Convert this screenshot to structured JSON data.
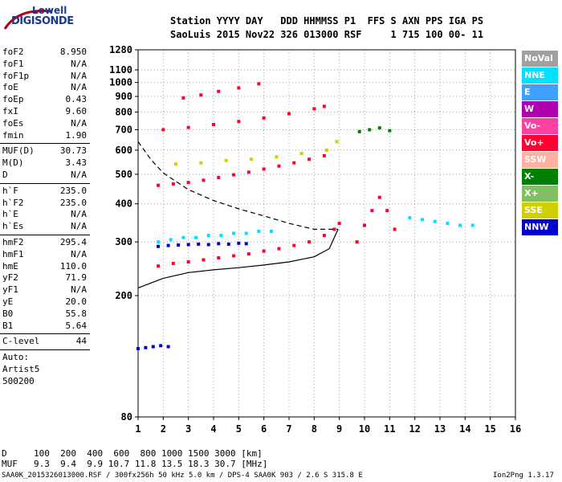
{
  "logo": {
    "line1": "Lowell",
    "line2": "DIGISONDE"
  },
  "header": {
    "line1": "Station YYYY DAY   DDD HHMMSS P1  FFS S AXN PPS IGA PS",
    "line2": "SaoLuis 2015 Nov22 326 013000 RSF     1 715 100 00- 11"
  },
  "params": {
    "group1": [
      {
        "name": "foF2",
        "value": "8.950"
      },
      {
        "name": "foF1",
        "value": "N/A"
      },
      {
        "name": "foF1p",
        "value": "N/A"
      },
      {
        "name": "foE",
        "value": "N/A"
      },
      {
        "name": "foEp",
        "value": "0.43"
      },
      {
        "name": "fxI",
        "value": "9.60"
      },
      {
        "name": "foEs",
        "value": "N/A"
      },
      {
        "name": "fmin",
        "value": "1.90"
      }
    ],
    "group2": [
      {
        "name": "MUF(D)",
        "value": "30.73"
      },
      {
        "name": "M(D)",
        "value": "3.43"
      },
      {
        "name": "D",
        "value": "N/A"
      }
    ],
    "group3": [
      {
        "name": "h`F",
        "value": "235.0"
      },
      {
        "name": "h`F2",
        "value": "235.0"
      },
      {
        "name": "h`E",
        "value": "N/A"
      },
      {
        "name": "h`Es",
        "value": "N/A"
      }
    ],
    "group4": [
      {
        "name": "hmF2",
        "value": "295.4"
      },
      {
        "name": "hmF1",
        "value": "N/A"
      },
      {
        "name": "hmE",
        "value": "110.0"
      },
      {
        "name": "yF2",
        "value": "71.9"
      },
      {
        "name": "yF1",
        "value": "N/A"
      },
      {
        "name": "yE",
        "value": "20.0"
      },
      {
        "name": "B0",
        "value": "55.8"
      },
      {
        "name": "B1",
        "value": "5.64"
      }
    ],
    "clevel": {
      "name": "C-level",
      "value": "44"
    },
    "auto": [
      "Auto:",
      "Artist5",
      "500200"
    ]
  },
  "legend": [
    {
      "label": "NoVal",
      "color": "#a0a0a0"
    },
    {
      "label": "NNE",
      "color": "#00e0ff"
    },
    {
      "label": "E",
      "color": "#3fa0ff"
    },
    {
      "label": "W",
      "color": "#b000b0"
    },
    {
      "label": "Vo-",
      "color": "#ff40a0"
    },
    {
      "label": "Vo+",
      "color": "#ff0030"
    },
    {
      "label": "SSW",
      "color": "#ffb0a0"
    },
    {
      "label": "X-",
      "color": "#008000"
    },
    {
      "label": "X+",
      "color": "#80c060"
    },
    {
      "label": "SSE",
      "color": "#d0d000"
    },
    {
      "label": "NNW",
      "color": "#0000d0"
    }
  ],
  "chart_data": {
    "type": "scatter",
    "xlim": [
      1,
      16
    ],
    "ylim": [
      80,
      1280
    ],
    "y_scale": "log",
    "x_ticks": [
      1,
      2,
      3,
      4,
      5,
      6,
      7,
      8,
      9,
      10,
      11,
      12,
      13,
      14,
      15,
      16
    ],
    "y_ticks": [
      80,
      200,
      300,
      400,
      500,
      600,
      700,
      800,
      900,
      1000,
      1100,
      1280
    ],
    "grid": true,
    "traces": [
      {
        "series": "Vo+",
        "color": "#ff0030",
        "x": [
          1.8,
          2.4,
          3.0,
          3.6,
          4.2,
          4.8,
          5.4,
          6.0,
          6.6,
          7.2,
          7.8,
          8.4,
          8.8,
          9.0
        ],
        "y": [
          250,
          255,
          258,
          262,
          266,
          270,
          274,
          280,
          285,
          292,
          300,
          315,
          330,
          345
        ]
      },
      {
        "series": "Vo+",
        "color": "#ff0030",
        "x": [
          1.8,
          2.4,
          3.0,
          3.6,
          4.2,
          4.8,
          5.4,
          6.0,
          6.6,
          7.2,
          7.8,
          8.4
        ],
        "y": [
          460,
          465,
          470,
          478,
          488,
          498,
          508,
          520,
          532,
          545,
          560,
          575
        ]
      },
      {
        "series": "Vo+",
        "color": "#ff0030",
        "x": [
          2.0,
          3.0,
          4.0,
          5.0,
          6.0,
          7.0,
          8.0,
          8.4
        ],
        "y": [
          700,
          712,
          728,
          745,
          765,
          790,
          820,
          835
        ]
      },
      {
        "series": "Vo+",
        "color": "#ff0030",
        "x": [
          2.8,
          3.5,
          4.2,
          5.0,
          5.8
        ],
        "y": [
          890,
          910,
          935,
          960,
          990
        ]
      },
      {
        "series": "NNE",
        "color": "#00e0ff",
        "x": [
          1.8,
          2.3,
          2.8,
          3.3,
          3.8,
          4.3,
          4.8,
          5.3,
          5.8,
          6.3
        ],
        "y": [
          300,
          305,
          310,
          310,
          315,
          315,
          320,
          320,
          325,
          325
        ]
      },
      {
        "series": "SSE",
        "color": "#d0d000",
        "x": [
          2.5,
          3.5,
          4.5,
          5.5,
          6.5,
          7.5,
          8.5,
          8.9
        ],
        "y": [
          540,
          545,
          555,
          560,
          570,
          585,
          600,
          640
        ]
      },
      {
        "series": "NNW",
        "color": "#0000d0",
        "x": [
          1.8,
          2.2,
          2.6,
          3.0,
          3.4,
          3.8,
          4.2,
          4.6,
          5.0,
          5.3
        ],
        "y": [
          290,
          292,
          293,
          294,
          295,
          294,
          296,
          295,
          297,
          296
        ]
      },
      {
        "series": "NNW",
        "color": "#0000d0",
        "x": [
          1.0,
          1.3,
          1.6,
          1.9,
          2.2
        ],
        "y": [
          134,
          135,
          136,
          137,
          136
        ]
      },
      {
        "series": "Vo+",
        "color": "#ff0030",
        "x": [
          9.7,
          10.0,
          10.3,
          10.6,
          10.9,
          11.2
        ],
        "y": [
          300,
          340,
          380,
          420,
          380,
          330
        ]
      },
      {
        "series": "NNE",
        "color": "#00e0ff",
        "x": [
          11.8,
          12.3,
          12.8,
          13.3,
          13.8,
          14.3
        ],
        "y": [
          360,
          355,
          350,
          345,
          340,
          340
        ]
      },
      {
        "series": "X-",
        "color": "#008000",
        "x": [
          9.8,
          10.2,
          10.6,
          11.0
        ],
        "y": [
          690,
          700,
          710,
          695
        ]
      }
    ],
    "curves": [
      {
        "style": "solid",
        "x": [
          1.0,
          2.0,
          3.0,
          4.0,
          5.0,
          6.0,
          7.0,
          8.0,
          8.6,
          8.95
        ],
        "y": [
          212,
          228,
          238,
          243,
          247,
          252,
          258,
          268,
          285,
          330
        ]
      },
      {
        "style": "dashed",
        "x": [
          1.0,
          1.5,
          2.0,
          3.0,
          4.0,
          5.0,
          6.0,
          7.0,
          8.0,
          8.95
        ],
        "y": [
          640,
          560,
          505,
          445,
          410,
          385,
          365,
          345,
          330,
          330
        ]
      }
    ]
  },
  "footer": {
    "d_label": "D",
    "d_values": "100  200  400  600  800 1000 1500 3000 [km]",
    "muf_label": "MUF",
    "muf_values": "9.3  9.4  9.9 10.7 11.8 13.5 18.3 30.7 [MHz]",
    "file_info": "SAA0K_2015326013000.RSF / 300fx256h 50 kHz 5.0 km / DPS-4 SAA0K 903 / 2.6 S 315.8 E",
    "version": "Ion2Png 1.3.17"
  }
}
